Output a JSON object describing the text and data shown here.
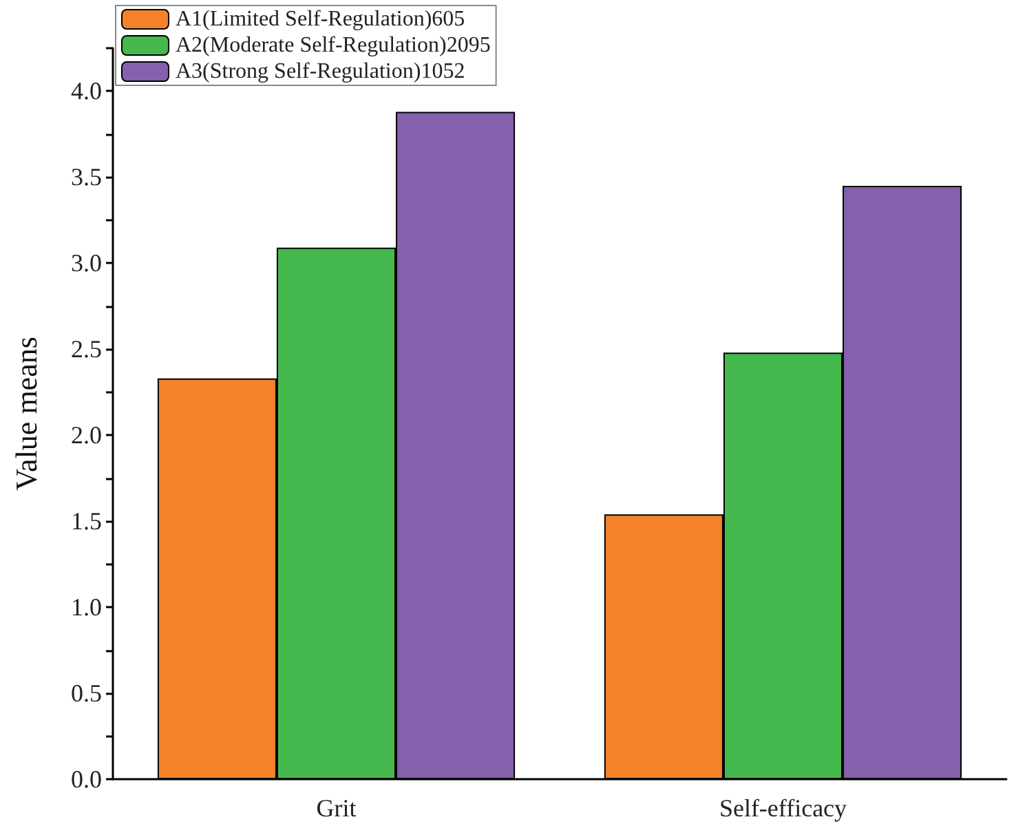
{
  "chart_data": {
    "type": "bar",
    "ylabel": "Value means",
    "categories": [
      "Grit",
      "Self-efficacy"
    ],
    "series": [
      {
        "name": "A1(Limited Self-Regulation)605",
        "color": "#f5822a",
        "values": [
          2.33,
          1.54
        ]
      },
      {
        "name": "A2(Moderate Self-Regulation)2095",
        "color": "#45b84e",
        "values": [
          3.09,
          2.48
        ]
      },
      {
        "name": "A3(Strong Self-Regulation)1052",
        "color": "#8460ad",
        "values": [
          3.88,
          3.45
        ]
      }
    ],
    "ylim": [
      0,
      4.25
    ],
    "yticks": [
      {
        "value": 0,
        "label": "0.0"
      },
      {
        "value": 0.25,
        "label": null
      },
      0.5,
      {
        "value": 0.75,
        "label": null
      },
      {
        "value": 1,
        "label": "1.0"
      },
      {
        "value": 1.25,
        "label": null
      },
      1.5,
      {
        "value": 1.75,
        "label": null
      },
      {
        "value": 2,
        "label": "2.0"
      },
      {
        "value": 2.25,
        "label": null
      },
      2.5,
      {
        "value": 2.75,
        "label": null
      },
      {
        "value": 3,
        "label": "3.0"
      },
      {
        "value": 3.25,
        "label": null
      },
      3.5,
      {
        "value": 3.75,
        "label": null
      },
      {
        "value": 4,
        "label": "4.0"
      },
      {
        "value": 4.25,
        "label": null
      }
    ],
    "grid": false,
    "legend": "top left"
  }
}
